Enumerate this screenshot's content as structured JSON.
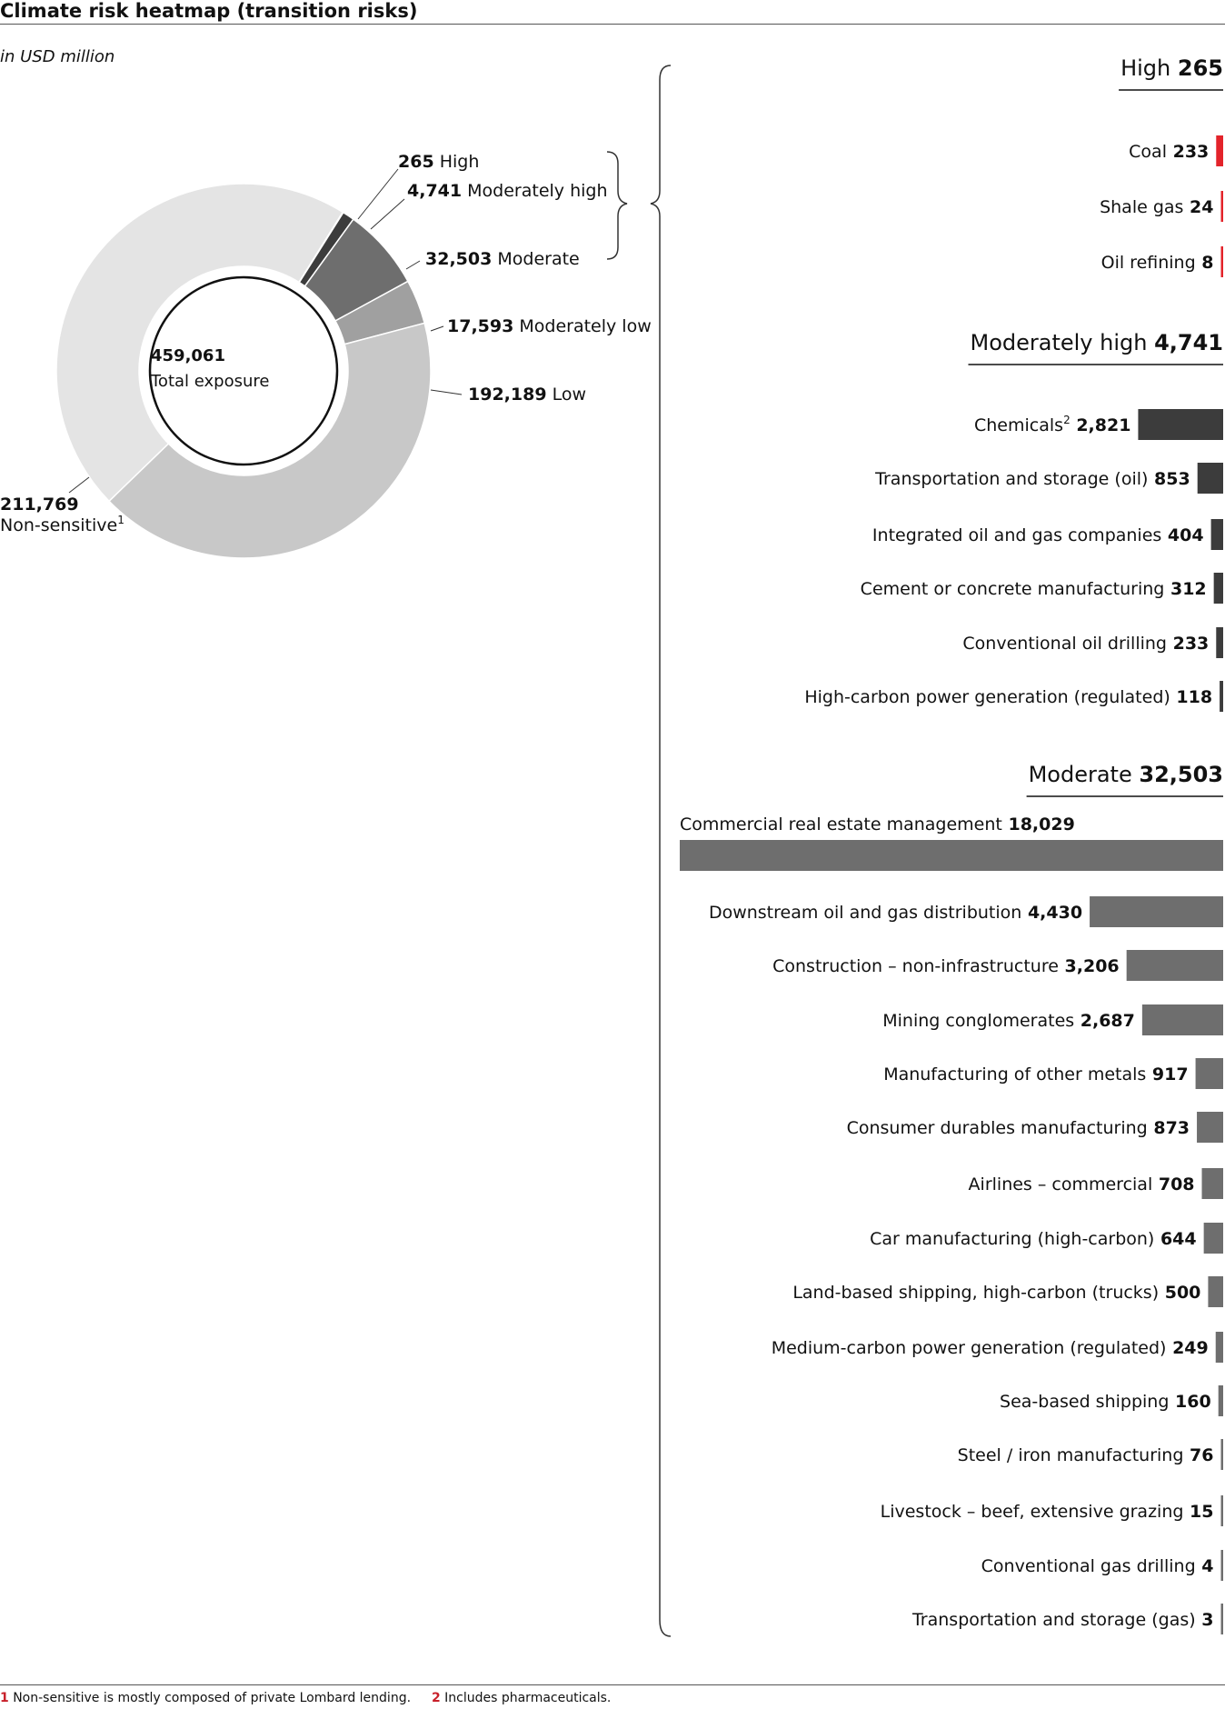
{
  "title": "Climate risk heatmap (transition risks)",
  "subtitle": "in USD million",
  "colors": {
    "high": "#e3232a",
    "moderately_high": "#3c3c3c",
    "moderate": "#6e6e6e",
    "moderately_low": "#a0a0a0",
    "low": "#c8c8c8",
    "non_sensitive": "#e4e4e4",
    "footnote_number": "#c8202a"
  },
  "footnotes": [
    {
      "number": "1",
      "text": "Non-sensitive is mostly composed of private Lombard lending."
    },
    {
      "number": "2",
      "text": "Includes pharmaceuticals."
    }
  ],
  "chart_data": [
    {
      "type": "pie",
      "center_value": "459,061",
      "center_label": "Total exposure",
      "slices": [
        {
          "value": 265,
          "value_label": "265",
          "label": "High",
          "footnote": "",
          "color": "#e3232a"
        },
        {
          "value": 4741,
          "value_label": "4,741",
          "label": "Moderately high",
          "footnote": "",
          "color": "#3c3c3c"
        },
        {
          "value": 32503,
          "value_label": "32,503",
          "label": "Moderate",
          "footnote": "",
          "color": "#6e6e6e"
        },
        {
          "value": 17593,
          "value_label": "17,593",
          "label": "Moderately low",
          "footnote": "",
          "color": "#a0a0a0"
        },
        {
          "value": 192189,
          "value_label": "192,189",
          "label": "Low",
          "footnote": "",
          "color": "#c8c8c8"
        },
        {
          "value": 211769,
          "value_label": "211,769",
          "label": "Non-sensitive",
          "footnote": "1",
          "color": "#e4e4e4"
        }
      ]
    },
    {
      "type": "bar",
      "orientation": "horizontal",
      "groups": [
        {
          "name": "High",
          "total_label": "265",
          "color": "#e3232a",
          "items": [
            {
              "label": "Coal",
              "footnote": "",
              "value": 233,
              "value_label": "233"
            },
            {
              "label": "Shale gas",
              "footnote": "",
              "value": 24,
              "value_label": "24"
            },
            {
              "label": "Oil refining",
              "footnote": "",
              "value": 8,
              "value_label": "8"
            }
          ]
        },
        {
          "name": "Moderately high",
          "total_label": "4,741",
          "color": "#3c3c3c",
          "items": [
            {
              "label": "Chemicals",
              "footnote": "2",
              "value": 2821,
              "value_label": "2,821"
            },
            {
              "label": "Transportation and storage (oil)",
              "footnote": "",
              "value": 853,
              "value_label": "853"
            },
            {
              "label": "Integrated oil and gas companies",
              "footnote": "",
              "value": 404,
              "value_label": "404"
            },
            {
              "label": "Cement or concrete manufacturing",
              "footnote": "",
              "value": 312,
              "value_label": "312"
            },
            {
              "label": "Conventional oil drilling",
              "footnote": "",
              "value": 233,
              "value_label": "233"
            },
            {
              "label": "High-carbon power generation (regulated)",
              "footnote": "",
              "value": 118,
              "value_label": "118"
            }
          ]
        },
        {
          "name": "Moderate",
          "total_label": "32,503",
          "color": "#6e6e6e",
          "items": [
            {
              "label": "Commercial real estate management",
              "footnote": "",
              "value": 18029,
              "value_label": "18,029"
            },
            {
              "label": "Downstream oil and gas distribution",
              "footnote": "",
              "value": 4430,
              "value_label": "4,430"
            },
            {
              "label": "Construction – non-infrastructure",
              "footnote": "",
              "value": 3206,
              "value_label": "3,206"
            },
            {
              "label": "Mining conglomerates",
              "footnote": "",
              "value": 2687,
              "value_label": "2,687"
            },
            {
              "label": "Manufacturing of other metals",
              "footnote": "",
              "value": 917,
              "value_label": "917"
            },
            {
              "label": "Consumer durables manufacturing",
              "footnote": "",
              "value": 873,
              "value_label": "873"
            },
            {
              "label": "Airlines – commercial",
              "footnote": "",
              "value": 708,
              "value_label": "708"
            },
            {
              "label": "Car manufacturing (high-carbon)",
              "footnote": "",
              "value": 644,
              "value_label": "644"
            },
            {
              "label": "Land-based shipping, high-carbon (trucks)",
              "footnote": "",
              "value": 500,
              "value_label": "500"
            },
            {
              "label": "Medium-carbon power generation (regulated)",
              "footnote": "",
              "value": 249,
              "value_label": "249"
            },
            {
              "label": "Sea-based shipping",
              "footnote": "",
              "value": 160,
              "value_label": "160"
            },
            {
              "label": "Steel / iron manufacturing",
              "footnote": "",
              "value": 76,
              "value_label": "76"
            },
            {
              "label": "Livestock – beef, extensive grazing",
              "footnote": "",
              "value": 15,
              "value_label": "15"
            },
            {
              "label": "Conventional gas drilling",
              "footnote": "",
              "value": 4,
              "value_label": "4"
            },
            {
              "label": "Transportation and storage (gas)",
              "footnote": "",
              "value": 3,
              "value_label": "3"
            }
          ]
        }
      ]
    }
  ]
}
